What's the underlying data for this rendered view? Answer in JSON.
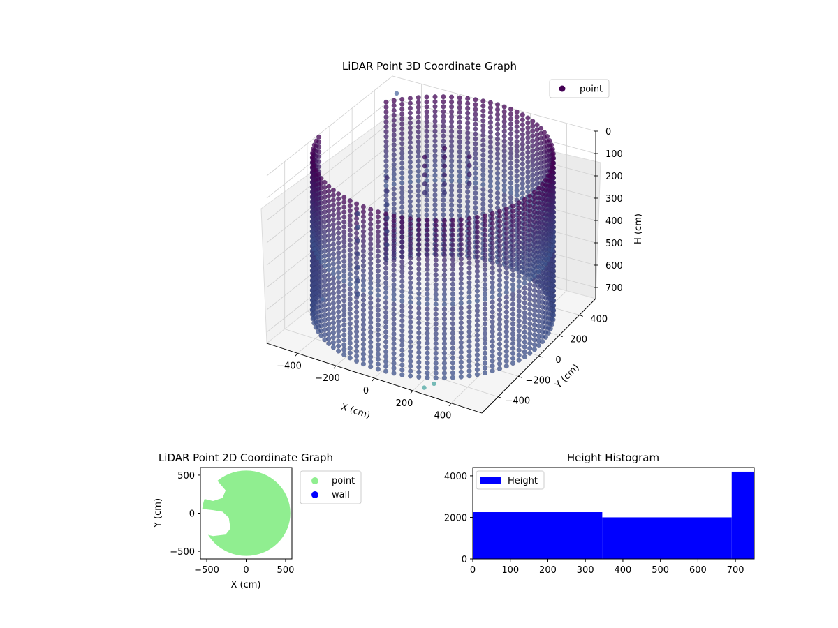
{
  "figure": {
    "background": "#ffffff"
  },
  "chart_data": [
    {
      "type": "scatter",
      "projection": "3d",
      "title": "LiDAR Point 3D Coordinate Graph",
      "xlabel": "X (cm)",
      "ylabel": "Y (cm)",
      "zlabel": "H (cm)",
      "xticks": [
        -400,
        -200,
        0,
        200,
        400
      ],
      "yticks": [
        -400,
        -200,
        0,
        200,
        400
      ],
      "zticks": [
        0,
        100,
        200,
        300,
        400,
        500,
        600,
        700
      ],
      "xlim": [
        -560,
        560
      ],
      "ylim": [
        -560,
        560
      ],
      "zlim": [
        0,
        750
      ],
      "zaxis_inverted": true,
      "grid": true,
      "colormap": "viridis",
      "colors": {
        "high": "#440154",
        "mid": "#3b528b",
        "low": "#5ec962"
      },
      "series": [
        {
          "name": "point",
          "shape": "circular wall",
          "radius": 560,
          "z_range": [
            0,
            720
          ]
        }
      ],
      "legend": {
        "position": "top-right",
        "entries": [
          {
            "label": "point",
            "color": "#440154"
          }
        ]
      }
    },
    {
      "type": "scatter",
      "title": "LiDAR Point 2D Coordinate Graph",
      "xlabel": "X (cm)",
      "ylabel": "Y (cm)",
      "xticks": [
        -500,
        0,
        500
      ],
      "yticks": [
        500,
        0,
        -500
      ],
      "xlim": [
        -580,
        580
      ],
      "ylim": [
        -600,
        600
      ],
      "grid": false,
      "series": [
        {
          "name": "point",
          "color": "#90ee90",
          "shape": "filled disc",
          "radius": 560
        },
        {
          "name": "wall",
          "color": "#0000ff"
        }
      ],
      "legend": {
        "position": "outside-right",
        "entries": [
          {
            "label": "point",
            "color": "#90ee90"
          },
          {
            "label": "wall",
            "color": "#0000ff"
          }
        ]
      }
    },
    {
      "type": "bar",
      "title": "Height Histogram",
      "xlabel": "",
      "ylabel": "",
      "xticks": [
        0,
        100,
        200,
        300,
        400,
        500,
        600,
        700
      ],
      "yticks": [
        0,
        2000,
        4000
      ],
      "xlim": [
        0,
        750
      ],
      "ylim": [
        0,
        4400
      ],
      "grid": false,
      "bins": [
        {
          "x0": 0,
          "x1": 345,
          "count": 2250
        },
        {
          "x0": 345,
          "x1": 690,
          "count": 2000
        },
        {
          "x0": 690,
          "x1": 750,
          "count": 4200
        }
      ],
      "series": [
        {
          "name": "Height",
          "color": "#0000ff"
        }
      ],
      "legend": {
        "position": "top-left",
        "entries": [
          {
            "label": "Height",
            "color": "#0000ff"
          }
        ]
      }
    }
  ]
}
